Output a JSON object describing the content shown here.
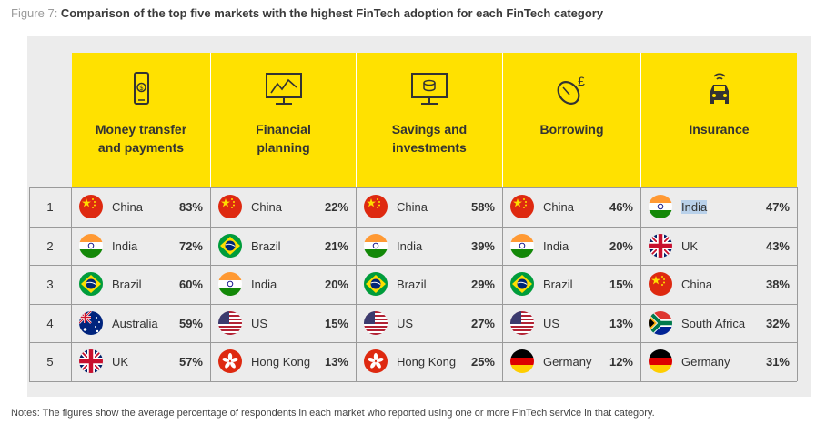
{
  "figure": {
    "prefix": "Figure 7: ",
    "title": "Comparison of the top five markets with the highest FinTech adoption for each FinTech category"
  },
  "categories": [
    {
      "label": "Money transfer\nand payments",
      "icon": "mobile-payment-icon"
    },
    {
      "label": "Financial\nplanning",
      "icon": "monitor-chart-icon"
    },
    {
      "label": "Savings and\ninvestments",
      "icon": "monitor-coins-icon"
    },
    {
      "label": "Borrowing",
      "icon": "mouse-pound-icon"
    },
    {
      "label": "Insurance",
      "icon": "connected-car-icon"
    }
  ],
  "ranks": [
    "1",
    "2",
    "3",
    "4",
    "5"
  ],
  "table": [
    [
      {
        "country": "China",
        "pct": "83%",
        "flag": "china"
      },
      {
        "country": "India",
        "pct": "72%",
        "flag": "india"
      },
      {
        "country": "Brazil",
        "pct": "60%",
        "flag": "brazil"
      },
      {
        "country": "Australia",
        "pct": "59%",
        "flag": "australia"
      },
      {
        "country": "UK",
        "pct": "57%",
        "flag": "uk"
      }
    ],
    [
      {
        "country": "China",
        "pct": "22%",
        "flag": "china"
      },
      {
        "country": "Brazil",
        "pct": "21%",
        "flag": "brazil"
      },
      {
        "country": "India",
        "pct": "20%",
        "flag": "india"
      },
      {
        "country": "US",
        "pct": "15%",
        "flag": "us"
      },
      {
        "country": "Hong Kong",
        "pct": "13%",
        "flag": "hongkong"
      }
    ],
    [
      {
        "country": "China",
        "pct": "58%",
        "flag": "china"
      },
      {
        "country": "India",
        "pct": "39%",
        "flag": "india"
      },
      {
        "country": "Brazil",
        "pct": "29%",
        "flag": "brazil"
      },
      {
        "country": "US",
        "pct": "27%",
        "flag": "us"
      },
      {
        "country": "Hong Kong",
        "pct": "25%",
        "flag": "hongkong"
      }
    ],
    [
      {
        "country": "China",
        "pct": "46%",
        "flag": "china"
      },
      {
        "country": "India",
        "pct": "20%",
        "flag": "india"
      },
      {
        "country": "Brazil",
        "pct": "15%",
        "flag": "brazil"
      },
      {
        "country": "US",
        "pct": "13%",
        "flag": "us"
      },
      {
        "country": "Germany",
        "pct": "12%",
        "flag": "germany"
      }
    ],
    [
      {
        "country": "India",
        "pct": "47%",
        "flag": "india",
        "selected": true
      },
      {
        "country": "UK",
        "pct": "43%",
        "flag": "uk"
      },
      {
        "country": "China",
        "pct": "38%",
        "flag": "china"
      },
      {
        "country": "South Africa",
        "pct": "32%",
        "flag": "southafrica"
      },
      {
        "country": "Germany",
        "pct": "31%",
        "flag": "germany"
      }
    ]
  ],
  "notes": "Notes: The figures show the average percentage of respondents in each market who reported using one or more FinTech service in that category.",
  "colors": {
    "header": "#ffe100",
    "panel": "#ececec",
    "grid": "#9a9a9a"
  }
}
